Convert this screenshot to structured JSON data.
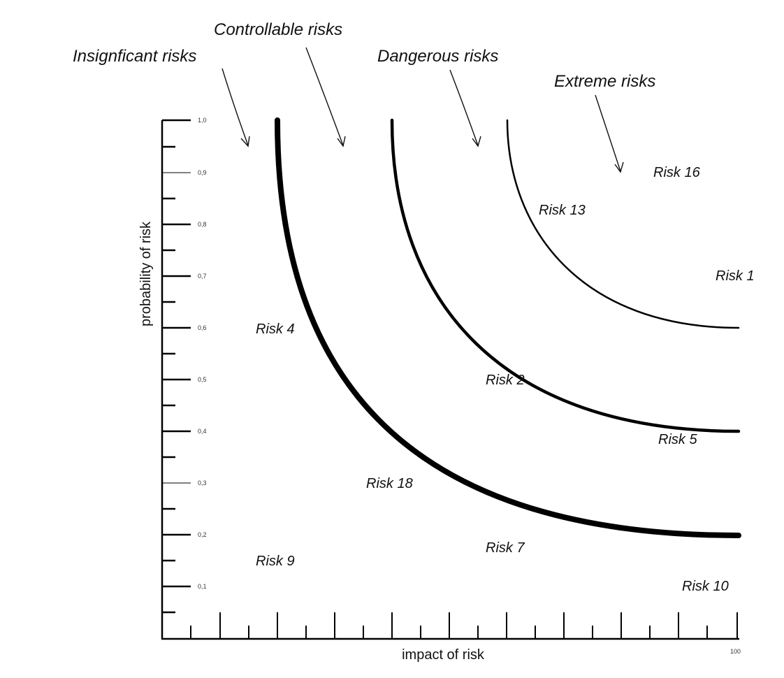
{
  "zones": {
    "insignificant": "Insignficant risks",
    "controllable": "Controllable risks",
    "dangerous": "Dangerous risks",
    "extreme": "Extreme risks"
  },
  "axes": {
    "y_title": "probability of risk",
    "x_title": "impact of risk",
    "x_end_label": "100",
    "y_tick_labels": [
      "1,0",
      "0,9",
      "0,8",
      "0,7",
      "0,6",
      "0,5",
      "0,4",
      "0,3",
      "0,2",
      "0,1"
    ]
  },
  "risks": {
    "r16": "Risk 16",
    "r13": "Risk 13",
    "r1": "Risk 1",
    "r4": "Risk 4",
    "r2": "Risk 2",
    "r5": "Risk 5",
    "r18": "Risk 18",
    "r7": "Risk 7",
    "r9": "Risk 9",
    "r10": "Risk 10"
  }
}
